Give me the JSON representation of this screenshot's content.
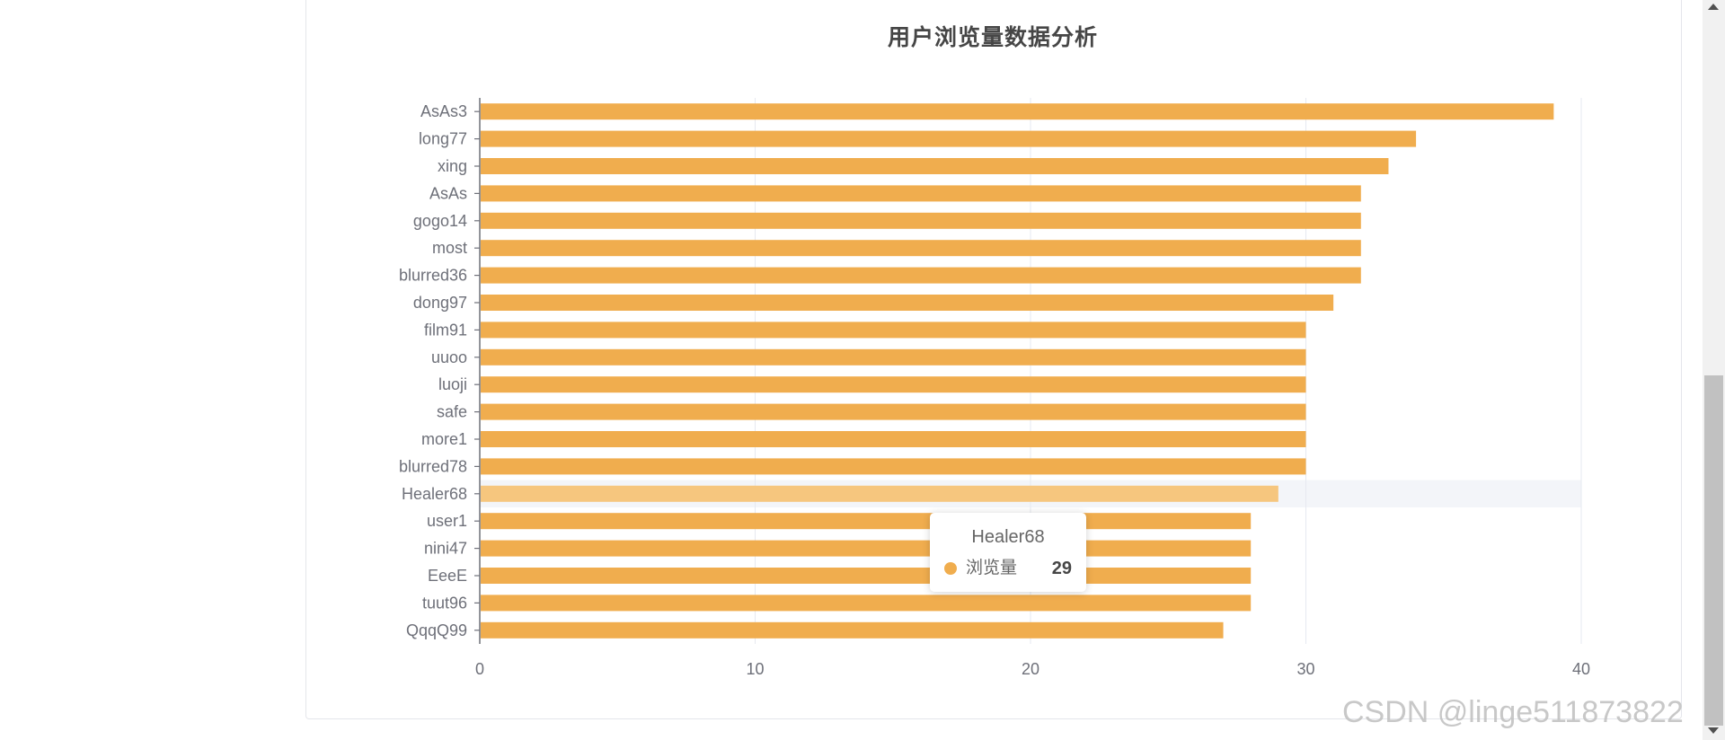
{
  "chart_data": {
    "type": "bar",
    "orientation": "horizontal",
    "title": "用户浏览量数据分析",
    "categories": [
      "AsAs3",
      "long77",
      "xing",
      "AsAs",
      "gogo14",
      "most",
      "blurred36",
      "dong97",
      "film91",
      "uuoo",
      "luoji",
      "safe",
      "more1",
      "blurred78",
      "Healer68",
      "user1",
      "nini47",
      "EeeE",
      "tuut96",
      "QqqQ99"
    ],
    "series": [
      {
        "name": "浏览量",
        "values": [
          39,
          34,
          33,
          32,
          32,
          32,
          32,
          31,
          30,
          30,
          30,
          30,
          30,
          30,
          29,
          28,
          28,
          28,
          28,
          27
        ]
      }
    ],
    "xlim": [
      0,
      40
    ],
    "xticks": [
      "0",
      "10",
      "20",
      "30",
      "40"
    ],
    "grid": true,
    "highlighted_category": "Healer68",
    "colors": {
      "bar": "#f0ad4e",
      "bar_highlight": "#f6c67e",
      "highlight_band": "#f3f5f9",
      "grid": "#e6e9f0",
      "axis": "#6e7079",
      "label": "#6e7079"
    }
  },
  "tooltip": {
    "title": "Healer68",
    "series_name": "浏览量",
    "value": "29",
    "marker_color": "#f0ad4e"
  },
  "watermark": "CSDN @linge511873822"
}
